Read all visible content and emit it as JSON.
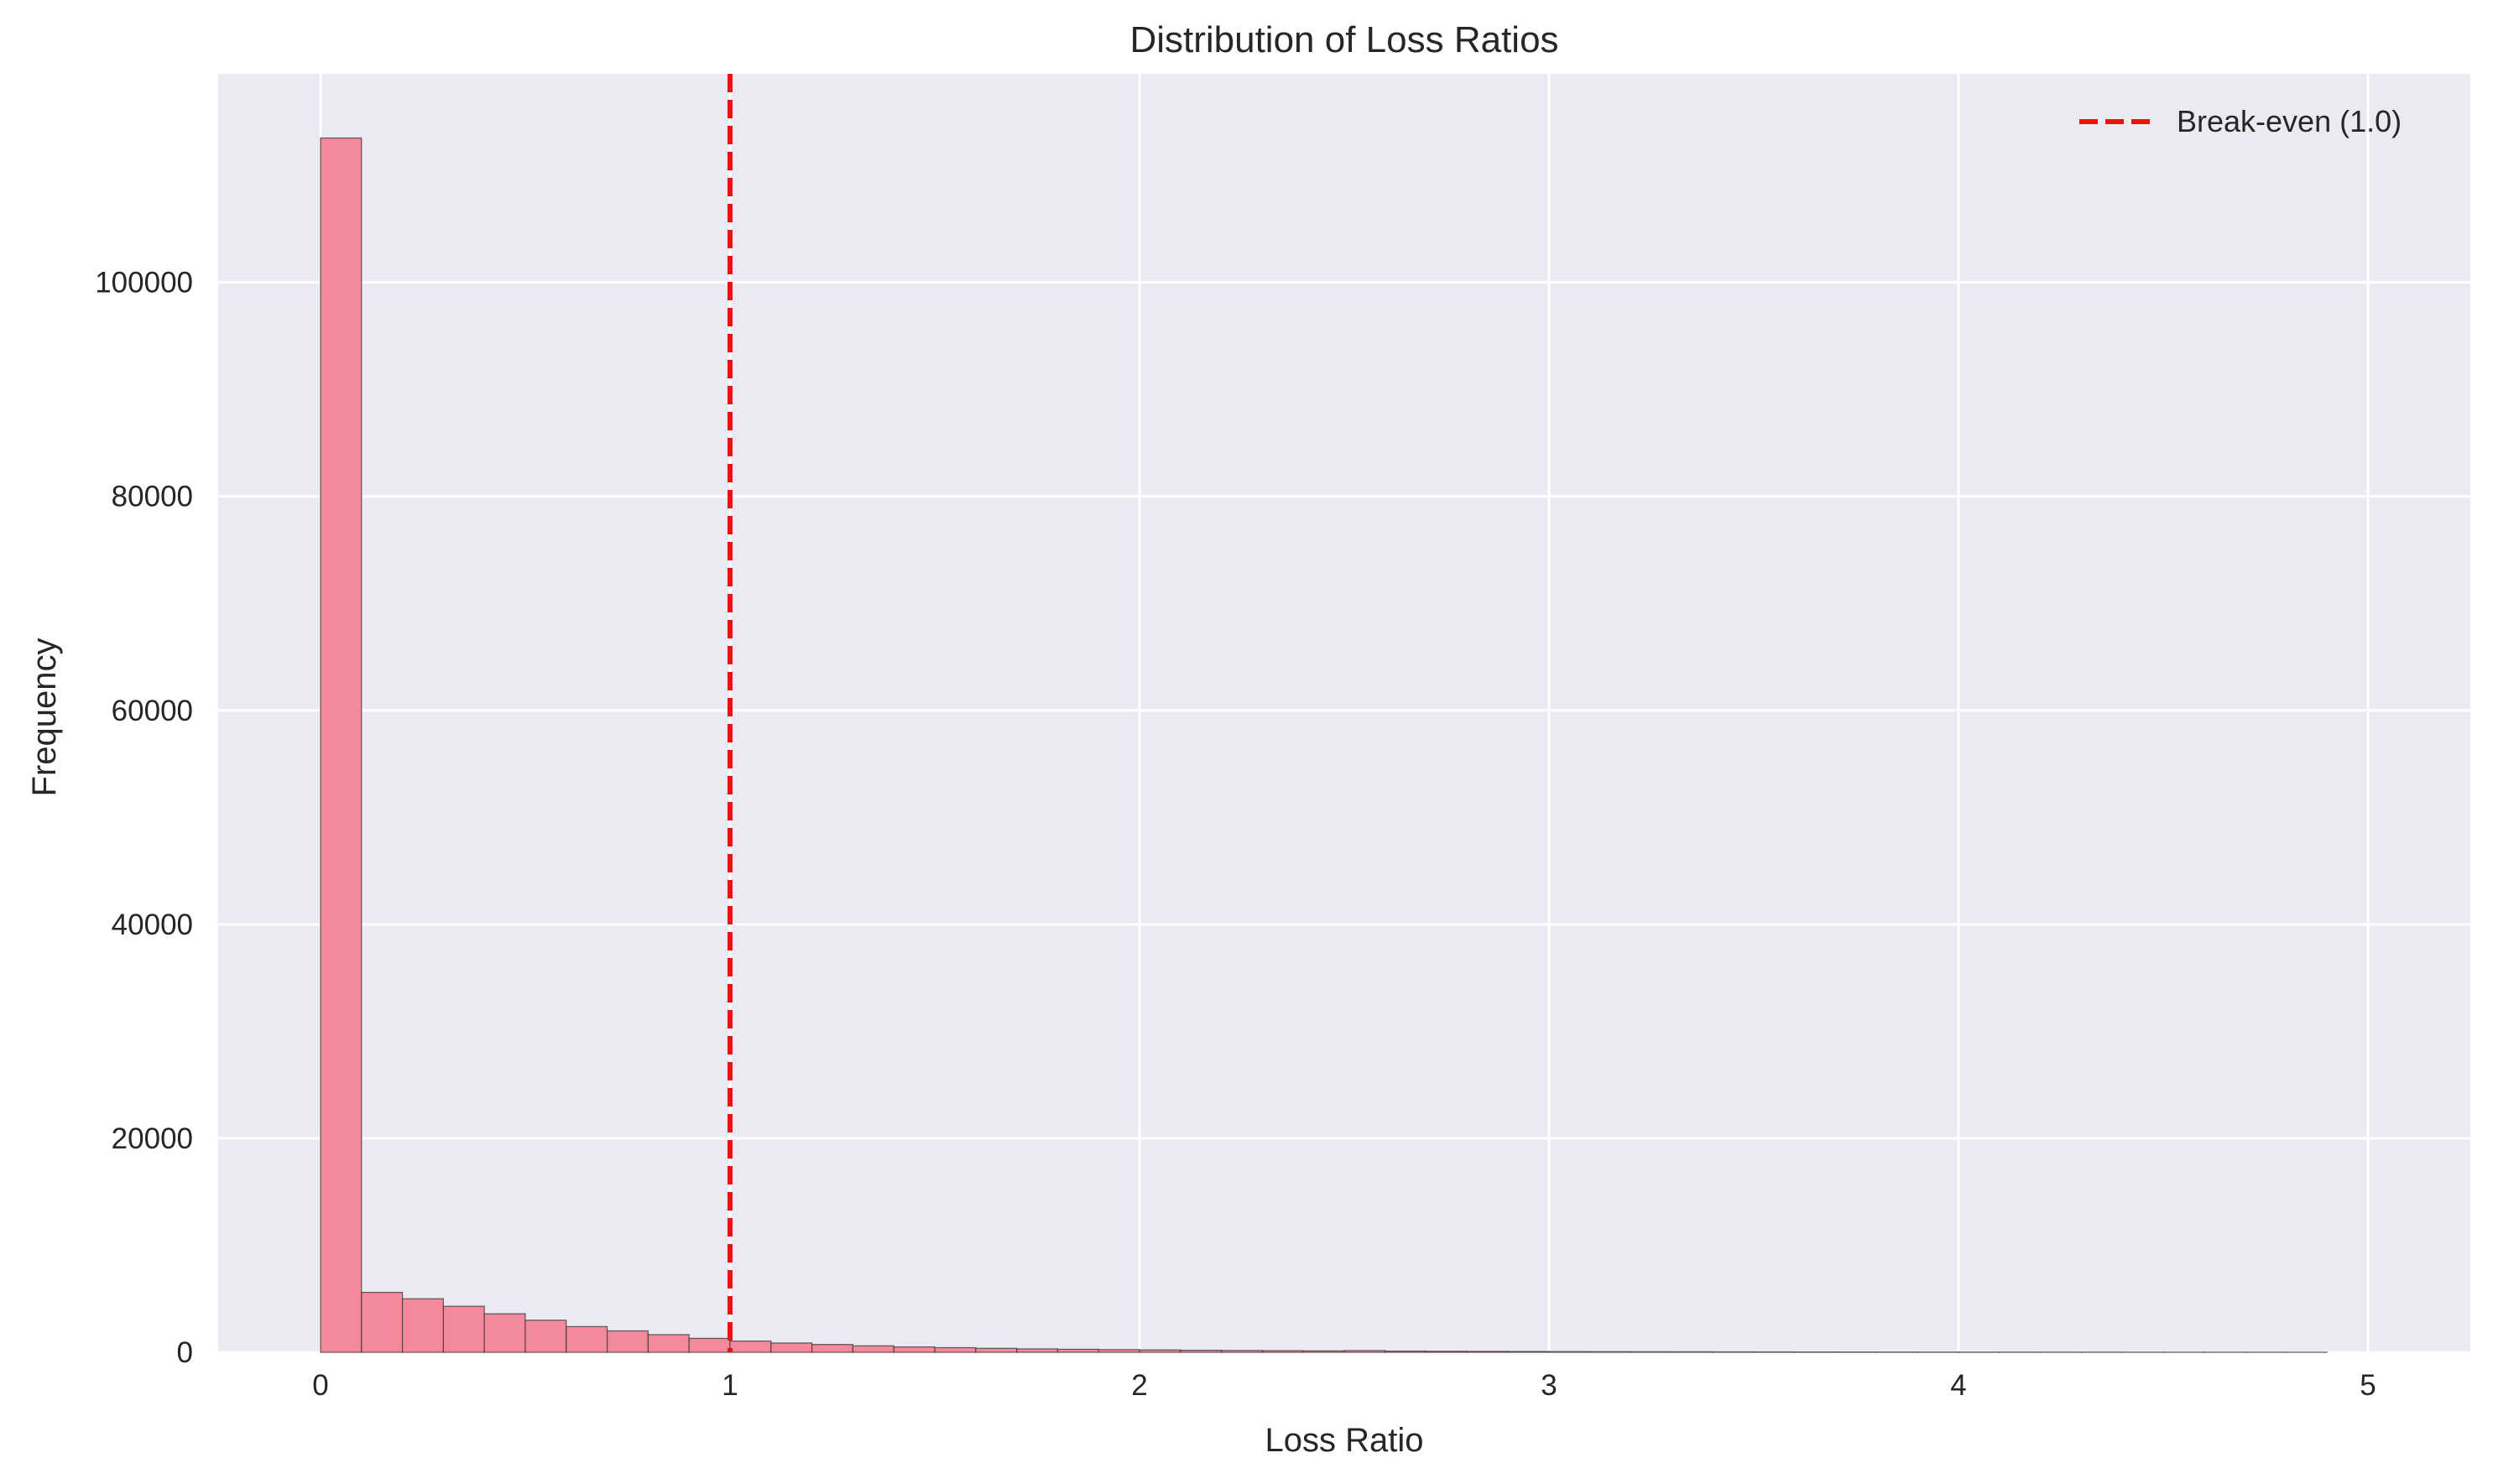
{
  "chart_data": {
    "type": "bar",
    "title": "Distribution of Loss Ratios",
    "xlabel": "Loss Ratio",
    "ylabel": "Frequency",
    "xlim": [
      -0.25,
      5.25
    ],
    "ylim": [
      0,
      119500
    ],
    "xticks": [
      0,
      1,
      2,
      3,
      4,
      5
    ],
    "xtick_labels": [
      "0",
      "1",
      "2",
      "3",
      "4",
      "5"
    ],
    "yticks": [
      0,
      20000,
      40000,
      60000,
      80000,
      100000
    ],
    "ytick_labels": [
      "0",
      "20000",
      "40000",
      "60000",
      "80000",
      "100000"
    ],
    "grid": true,
    "legend_position": "top-right",
    "bin_width": 0.1,
    "bin_start": 0.0,
    "values": [
      113500,
      5600,
      5000,
      4300,
      3600,
      3000,
      2400,
      2000,
      1650,
      1300,
      1050,
      870,
      730,
      600,
      500,
      430,
      370,
      320,
      280,
      250,
      220,
      190,
      170,
      150,
      130,
      160,
      110,
      95,
      85,
      75,
      65,
      58,
      52,
      46,
      41,
      37,
      33,
      29,
      26,
      23,
      21,
      19,
      17,
      15,
      13,
      12,
      11,
      10,
      9
    ],
    "bar_color": "#f4899b",
    "bar_edge_color": "#3a3a3a",
    "reference_line": {
      "x": 1.0,
      "label": "Break-even (1.0)",
      "color": "#ee1111",
      "style": "dashed"
    },
    "background_color": "#eaeaf2",
    "grid_color": "#ffffff"
  }
}
